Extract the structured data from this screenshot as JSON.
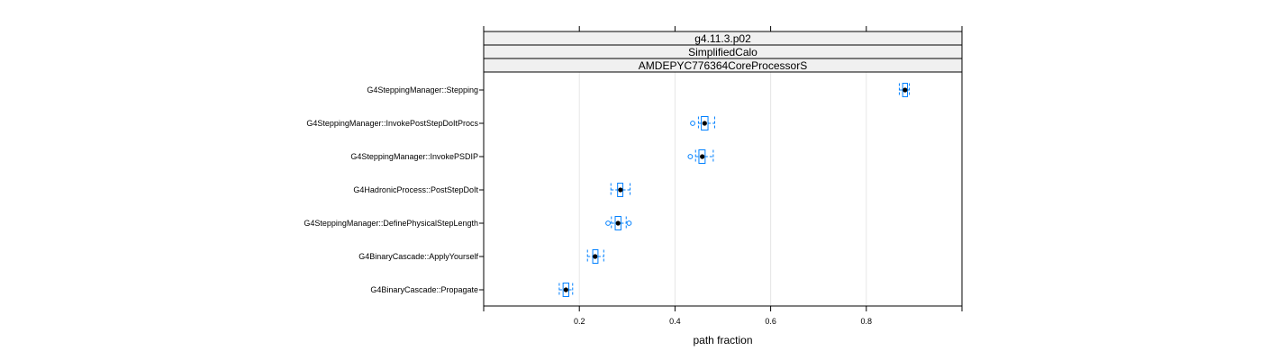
{
  "chart_data": {
    "type": "boxplot",
    "strips": [
      "g4.11.3.p02",
      "SimplifiedCalo",
      "AMDEPYC776364CoreProcessorS"
    ],
    "xlabel": "path fraction",
    "xlim": [
      0,
      1
    ],
    "xticks": [
      0.2,
      0.4,
      0.6,
      0.8
    ],
    "xtick_labels": [
      "0.2",
      "0.4",
      "0.6",
      "0.8"
    ],
    "grid": true,
    "colors": {
      "box": "#0080ff",
      "median": "#000000",
      "strip_bg": "#f0f0f0",
      "grid": "#e6e6e6"
    },
    "categories": [
      {
        "label": "G4SteppingManager::Stepping",
        "wlo": 0.869,
        "q1": 0.876,
        "med": 0.881,
        "q3": 0.886,
        "whi": 0.89,
        "outliers": []
      },
      {
        "label": "G4SteppingManager::InvokePostStepDoItProcs",
        "wlo": 0.449,
        "q1": 0.455,
        "med": 0.462,
        "q3": 0.469,
        "whi": 0.483,
        "outliers": [
          0.437
        ]
      },
      {
        "label": "G4SteppingManager::InvokePSDIP",
        "wlo": 0.443,
        "q1": 0.45,
        "med": 0.457,
        "q3": 0.463,
        "whi": 0.48,
        "outliers": [
          0.432
        ]
      },
      {
        "label": "G4HadronicProcess::PostStepDoIt",
        "wlo": 0.266,
        "q1": 0.28,
        "med": 0.286,
        "q3": 0.291,
        "whi": 0.306,
        "outliers": []
      },
      {
        "label": "G4SteppingManager::DefinePhysicalStepLength",
        "wlo": 0.267,
        "q1": 0.275,
        "med": 0.281,
        "q3": 0.287,
        "whi": 0.298,
        "outliers": [
          0.26,
          0.304
        ]
      },
      {
        "label": "G4BinaryCascade::ApplyYourself",
        "wlo": 0.217,
        "q1": 0.228,
        "med": 0.233,
        "q3": 0.239,
        "whi": 0.251,
        "outliers": []
      },
      {
        "label": "G4BinaryCascade::Propagate",
        "wlo": 0.158,
        "q1": 0.166,
        "med": 0.172,
        "q3": 0.178,
        "whi": 0.186,
        "outliers": []
      }
    ]
  }
}
